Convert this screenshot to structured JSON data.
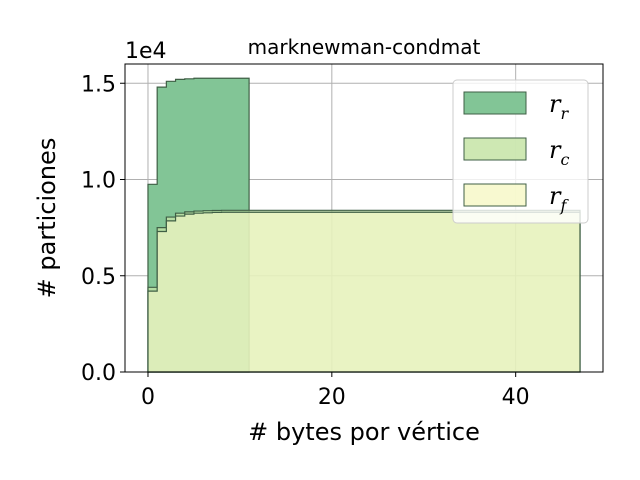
{
  "chart_data": {
    "type": "histogram-step",
    "title": "marknewman-condmat",
    "xlabel": "# bytes por vértice",
    "ylabel": "# particiones",
    "y_offset_label": "1e4",
    "xlim": [
      -2.5,
      49.5
    ],
    "ylim": [
      0,
      16000
    ],
    "xticks": [
      0,
      20,
      40
    ],
    "yticks": [
      0,
      5000,
      10000,
      15000
    ],
    "ytick_labels": [
      "0.0",
      "0.5",
      "1.0",
      "1.5"
    ],
    "grid": true,
    "legend_position": "top-right",
    "series": [
      {
        "name": "r_r",
        "label_main": "r",
        "label_sub": "r",
        "color": "#82c596",
        "edge": "#3f5f45",
        "alpha": 1.0,
        "x": [
          0,
          1,
          2,
          3,
          4,
          5,
          6,
          7,
          8,
          9,
          10,
          11
        ],
        "y": [
          9750,
          14800,
          15100,
          15200,
          15230,
          15260,
          15260,
          15260,
          15260,
          15260,
          15260
        ]
      },
      {
        "name": "r_c",
        "label_main": "r",
        "label_sub": "c",
        "color": "#c5e4a6",
        "edge": "#3f5f45",
        "alpha": 0.75,
        "x": [
          0,
          1,
          2,
          3,
          4,
          5,
          6,
          7,
          8,
          9,
          10,
          47
        ],
        "y": [
          4400,
          7500,
          8050,
          8250,
          8320,
          8360,
          8380,
          8390,
          8400,
          8400,
          8400
        ]
      },
      {
        "name": "r_f",
        "label_main": "r",
        "label_sub": "f",
        "color": "#f7f8c8",
        "edge": "#3f5f45",
        "alpha": 0.6,
        "x": [
          0,
          1,
          2,
          3,
          4,
          5,
          6,
          7,
          8,
          9,
          10,
          47
        ],
        "y": [
          4200,
          7300,
          7850,
          8100,
          8200,
          8250,
          8270,
          8290,
          8300,
          8300,
          8300
        ]
      }
    ]
  }
}
